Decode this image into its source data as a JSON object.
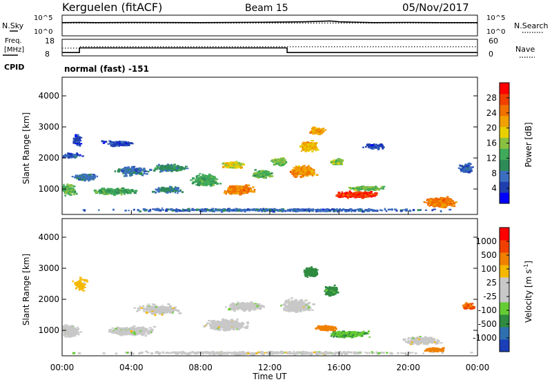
{
  "header": {
    "station": "Kerguelen (fitACF)",
    "beam": "Beam 15",
    "date": "05/Nov/2017"
  },
  "panels": {
    "nsky_label": "N.Sky",
    "nsearch_label": "N.Search",
    "count_top_tick": "10^5",
    "count_bottom_tick": "10^0",
    "freq_label_1": "Freq.",
    "freq_label_2": "[MHz]",
    "freq_ticks": [
      "18",
      "8"
    ],
    "nave_label": "Nave",
    "nave_ticks": [
      "60",
      "0"
    ],
    "cpid_label": "CPID",
    "cpid_value": "normal (fast) -151"
  },
  "axes": {
    "xlabel": "Time UT",
    "x_ticks": [
      "00:00",
      "04:00",
      "08:00",
      "12:00",
      "16:00",
      "20:00",
      "00:00"
    ],
    "ylabel": "Slant Range [km]",
    "y_ticks": [
      "1000",
      "2000",
      "3000",
      "4000"
    ]
  },
  "colorbars": {
    "power": {
      "label": "Power [dB]",
      "ticks": [
        "4",
        "8",
        "12",
        "16",
        "20",
        "24",
        "28"
      ],
      "colors": [
        "#0000ff",
        "#1f3fb0",
        "#3c6ec0",
        "#2e8b57",
        "#3faa5a",
        "#8ac040",
        "#e8d000",
        "#f0a000",
        "#f07000",
        "#f04000",
        "#ff0000"
      ]
    },
    "velocity": {
      "label": "Velocity [m s",
      "label_sup": "-1",
      "label_close": "]",
      "ticks": [
        "1000",
        "500",
        "100",
        "25",
        "-25",
        "-100",
        "-500",
        "-1000"
      ],
      "colors": [
        "#1a3fb8",
        "#2e6fb0",
        "#2e8b40",
        "#66cc33",
        "#c8c8c8",
        "#c8c8c8",
        "#f5b800",
        "#f08000",
        "#f04000",
        "#ff0000"
      ]
    }
  },
  "chart_data": [
    {
      "type": "line",
      "panel": "noise",
      "series": [
        {
          "name": "N.Sky",
          "style": "solid",
          "x": [
            0,
            1,
            2,
            4,
            8,
            12,
            14,
            15.5,
            16,
            18,
            20,
            22,
            24
          ],
          "y": [
            3.2,
            3.25,
            3.2,
            3.25,
            3.2,
            3.3,
            3.4,
            3.6,
            3.4,
            3.2,
            3.25,
            3.2,
            3.2
          ]
        },
        {
          "name": "N.Search",
          "style": "dotted",
          "x": [
            0,
            24
          ],
          "y": [
            3.1,
            3.1
          ]
        }
      ],
      "ylim": [
        0,
        5
      ],
      "xlim": [
        0,
        24
      ]
    },
    {
      "type": "line",
      "panel": "frequency",
      "series": [
        {
          "name": "Freq",
          "style": "solid",
          "x": [
            0,
            1,
            1,
            13,
            13,
            24
          ],
          "y": [
            10,
            10,
            12.8,
            12.8,
            10,
            10
          ]
        },
        {
          "name": "Nave",
          "style": "dotted",
          "x": [
            0,
            1,
            1,
            24
          ],
          "y": [
            28,
            28,
            33,
            33
          ]
        }
      ],
      "ylim": [
        8,
        18
      ],
      "xlim": [
        0,
        24
      ]
    },
    {
      "type": "heatmap",
      "panel": "power",
      "x_unit": "hours UT",
      "y_unit": "slant range km",
      "xlim": [
        0,
        24
      ],
      "ylim": [
        180,
        4600
      ],
      "blobs": [
        {
          "x": 0.2,
          "y": 1000,
          "w": 1.5,
          "h": 420,
          "v": 14,
          "n": 180
        },
        {
          "x": 1.3,
          "y": 1400,
          "w": 1.8,
          "h": 250,
          "v": 9,
          "n": 120
        },
        {
          "x": 0.8,
          "y": 2600,
          "w": 0.6,
          "h": 500,
          "v": 6,
          "n": 60
        },
        {
          "x": 0.5,
          "y": 2100,
          "w": 1.5,
          "h": 200,
          "v": 7,
          "n": 80
        },
        {
          "x": 3.0,
          "y": 950,
          "w": 3.0,
          "h": 260,
          "v": 13,
          "n": 220
        },
        {
          "x": 4.0,
          "y": 1600,
          "w": 2.5,
          "h": 350,
          "v": 9,
          "n": 160
        },
        {
          "x": 3.2,
          "y": 2500,
          "w": 2.2,
          "h": 250,
          "v": 6,
          "n": 90
        },
        {
          "x": 6.2,
          "y": 1700,
          "w": 2.5,
          "h": 300,
          "v": 11,
          "n": 180
        },
        {
          "x": 6.0,
          "y": 1000,
          "w": 2.0,
          "h": 220,
          "v": 10,
          "n": 120
        },
        {
          "x": 8.2,
          "y": 1300,
          "w": 2.0,
          "h": 500,
          "v": 13,
          "n": 220
        },
        {
          "x": 10.2,
          "y": 1000,
          "w": 2.0,
          "h": 320,
          "v": 23,
          "n": 340
        },
        {
          "x": 9.8,
          "y": 1800,
          "w": 1.5,
          "h": 260,
          "v": 18,
          "n": 200
        },
        {
          "x": 11.5,
          "y": 1500,
          "w": 1.5,
          "h": 320,
          "v": 14,
          "n": 180
        },
        {
          "x": 12.5,
          "y": 1900,
          "w": 1.0,
          "h": 300,
          "v": 15,
          "n": 120
        },
        {
          "x": 13.8,
          "y": 1600,
          "w": 1.8,
          "h": 450,
          "v": 22,
          "n": 320
        },
        {
          "x": 14.2,
          "y": 2400,
          "w": 1.3,
          "h": 400,
          "v": 20,
          "n": 240
        },
        {
          "x": 14.7,
          "y": 2900,
          "w": 1.1,
          "h": 260,
          "v": 21,
          "n": 160
        },
        {
          "x": 15.8,
          "y": 1900,
          "w": 0.8,
          "h": 250,
          "v": 16,
          "n": 90
        },
        {
          "x": 17.0,
          "y": 850,
          "w": 2.8,
          "h": 220,
          "v": 27,
          "n": 420
        },
        {
          "x": 17.5,
          "y": 1050,
          "w": 2.5,
          "h": 150,
          "v": 15,
          "n": 160
        },
        {
          "x": 18.0,
          "y": 2400,
          "w": 1.5,
          "h": 250,
          "v": 6,
          "n": 60
        },
        {
          "x": 21.8,
          "y": 600,
          "w": 2.0,
          "h": 400,
          "v": 23,
          "n": 380
        },
        {
          "x": 23.3,
          "y": 1700,
          "w": 1.0,
          "h": 350,
          "v": 7,
          "n": 90
        },
        {
          "x": 12.0,
          "y": 350,
          "w": 24.0,
          "h": 120,
          "v": 8,
          "n": 500
        }
      ]
    },
    {
      "type": "heatmap",
      "panel": "velocity",
      "x_unit": "hours UT",
      "y_unit": "slant range km",
      "xlim": [
        0,
        24
      ],
      "ylim": [
        180,
        4600
      ],
      "blobs": [
        {
          "x": 0.4,
          "y": 1000,
          "w": 1.5,
          "h": 500,
          "v": 0,
          "n": 220
        },
        {
          "x": 1.0,
          "y": 2500,
          "w": 1.0,
          "h": 500,
          "v": -60,
          "n": 60
        },
        {
          "x": 4.0,
          "y": 1000,
          "w": 3.5,
          "h": 350,
          "v": 5,
          "n": 300
        },
        {
          "x": 5.5,
          "y": 1700,
          "w": 3.0,
          "h": 400,
          "v": 0,
          "n": 260
        },
        {
          "x": 9.5,
          "y": 1200,
          "w": 3.0,
          "h": 450,
          "v": 0,
          "n": 360
        },
        {
          "x": 10.5,
          "y": 1800,
          "w": 2.5,
          "h": 350,
          "v": 5,
          "n": 260
        },
        {
          "x": 13.5,
          "y": 1800,
          "w": 2.0,
          "h": 550,
          "v": 0,
          "n": 320
        },
        {
          "x": 14.3,
          "y": 2900,
          "w": 1.0,
          "h": 400,
          "v": 150,
          "n": 160
        },
        {
          "x": 15.5,
          "y": 2300,
          "w": 1.0,
          "h": 400,
          "v": 120,
          "n": 140
        },
        {
          "x": 16.5,
          "y": 900,
          "w": 2.8,
          "h": 250,
          "v": 90,
          "n": 300
        },
        {
          "x": 15.2,
          "y": 1100,
          "w": 1.6,
          "h": 180,
          "v": -150,
          "n": 120
        },
        {
          "x": 20.7,
          "y": 700,
          "w": 2.5,
          "h": 300,
          "v": 0,
          "n": 300
        },
        {
          "x": 21.5,
          "y": 400,
          "w": 1.5,
          "h": 150,
          "v": -300,
          "n": 120
        },
        {
          "x": 23.4,
          "y": 1800,
          "w": 0.8,
          "h": 250,
          "v": -400,
          "n": 80
        },
        {
          "x": 12.0,
          "y": 300,
          "w": 24.0,
          "h": 120,
          "v": 0,
          "n": 400
        }
      ]
    }
  ]
}
